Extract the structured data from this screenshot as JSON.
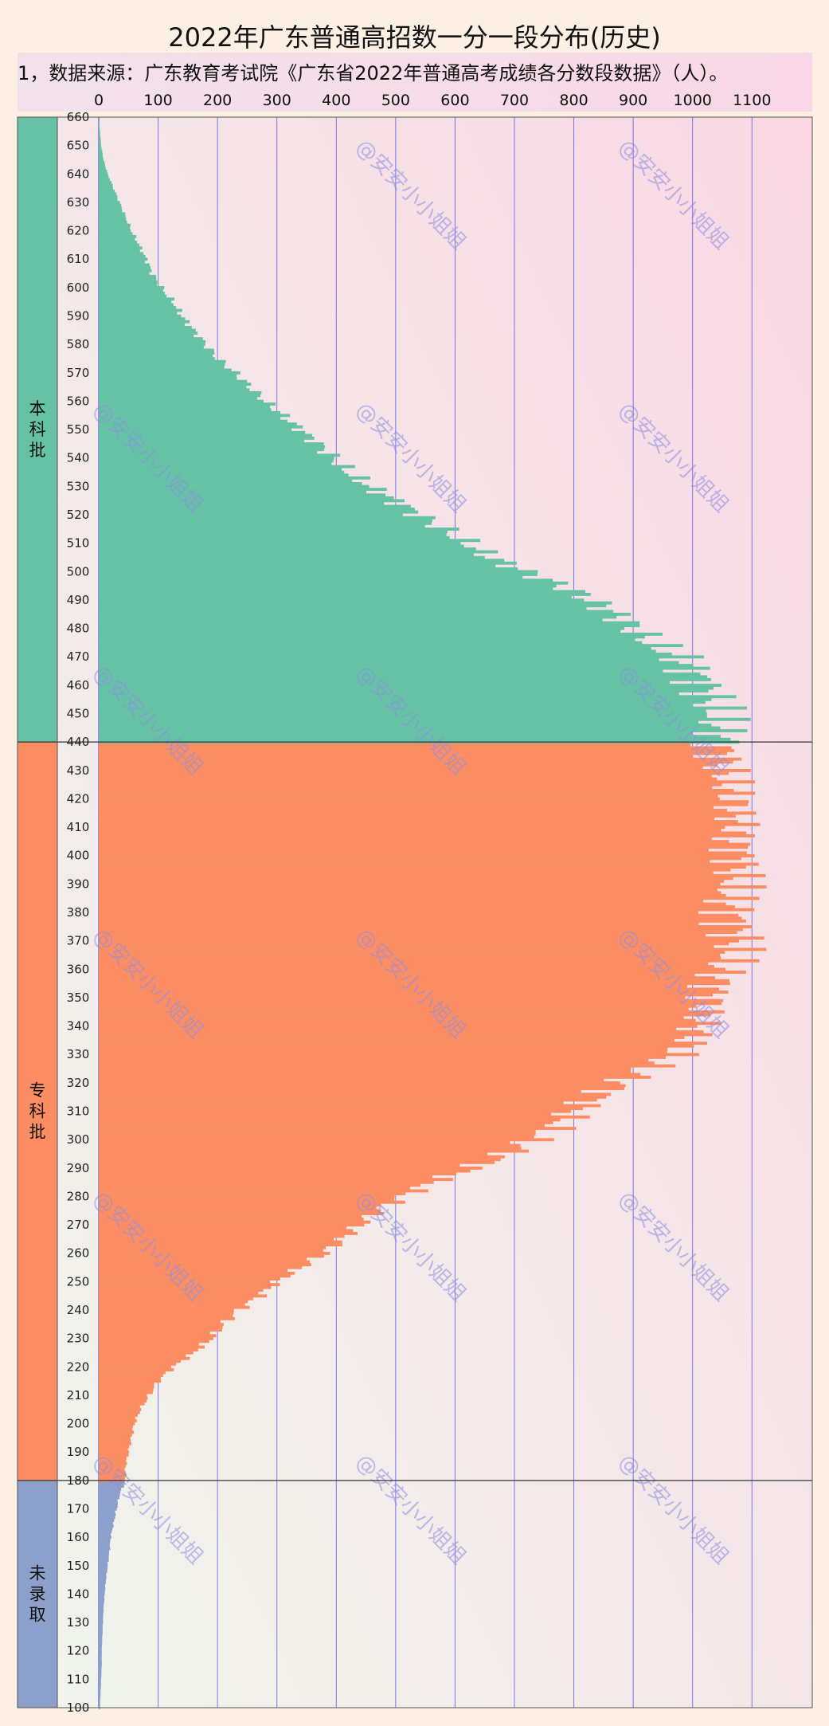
{
  "title": "2022年广东普通高招数一分一段分布(历史)",
  "source_note": "1，数据来源：广东教育考试院《广东省2022年普通高考成绩各分数段数据》（人）。",
  "watermark": "@安安小小姐姐",
  "colors": {
    "benke": "#66c2a5",
    "zhuanke": "#fc8d62",
    "weiluqu": "#8da0cb",
    "gridline": "#4848e8",
    "plot_bg_left": "#f0f4ec",
    "plot_bg_right": "#f9d8e4"
  },
  "chart_data": {
    "type": "bar",
    "orientation": "horizontal",
    "title": "2022年广东普通高招数一分一段分布(历史)",
    "x_ticks": [
      0,
      100,
      200,
      300,
      400,
      500,
      600,
      700,
      800,
      900,
      1000,
      1100
    ],
    "xlim": [
      0,
      1230
    ],
    "y_ticks": [
      660,
      650,
      640,
      630,
      620,
      610,
      600,
      590,
      580,
      570,
      560,
      550,
      540,
      530,
      520,
      510,
      500,
      490,
      480,
      470,
      460,
      450,
      440,
      430,
      420,
      410,
      400,
      390,
      380,
      370,
      360,
      350,
      340,
      330,
      320,
      310,
      300,
      290,
      280,
      270,
      260,
      250,
      240,
      230,
      220,
      210,
      200,
      190,
      180,
      170,
      160,
      150,
      140,
      130,
      120,
      110,
      100
    ],
    "ylim": [
      100,
      660
    ],
    "grid": "vertical",
    "bands": [
      {
        "label": "本科批",
        "from": 440,
        "to": 660,
        "color": "#66c2a5"
      },
      {
        "label": "专科批",
        "from": 180,
        "to": 439,
        "color": "#fc8d62"
      },
      {
        "label": "未录取",
        "from": 100,
        "to": 179,
        "color": "#8da0cb"
      }
    ],
    "anchors": [
      [
        660,
        0
      ],
      [
        655,
        2
      ],
      [
        650,
        4
      ],
      [
        645,
        8
      ],
      [
        640,
        15
      ],
      [
        635,
        25
      ],
      [
        630,
        35
      ],
      [
        625,
        45
      ],
      [
        620,
        55
      ],
      [
        615,
        68
      ],
      [
        610,
        80
      ],
      [
        605,
        90
      ],
      [
        600,
        105
      ],
      [
        595,
        125
      ],
      [
        590,
        140
      ],
      [
        585,
        160
      ],
      [
        580,
        180
      ],
      [
        575,
        200
      ],
      [
        570,
        230
      ],
      [
        565,
        255
      ],
      [
        560,
        280
      ],
      [
        555,
        310
      ],
      [
        550,
        340
      ],
      [
        545,
        370
      ],
      [
        540,
        395
      ],
      [
        535,
        420
      ],
      [
        530,
        455
      ],
      [
        525,
        500
      ],
      [
        520,
        540
      ],
      [
        515,
        580
      ],
      [
        510,
        620
      ],
      [
        505,
        660
      ],
      [
        500,
        720
      ],
      [
        495,
        780
      ],
      [
        490,
        830
      ],
      [
        485,
        870
      ],
      [
        480,
        900
      ],
      [
        475,
        930
      ],
      [
        470,
        975
      ],
      [
        465,
        1000
      ],
      [
        460,
        1020
      ],
      [
        455,
        1030
      ],
      [
        450,
        1040
      ],
      [
        445,
        1045
      ],
      [
        440,
        1050
      ],
      [
        435,
        1050
      ],
      [
        430,
        1055
      ],
      [
        425,
        1060
      ],
      [
        420,
        1070
      ],
      [
        415,
        1070
      ],
      [
        410,
        1075
      ],
      [
        405,
        1070
      ],
      [
        400,
        1080
      ],
      [
        395,
        1075
      ],
      [
        390,
        1070
      ],
      [
        385,
        1060
      ],
      [
        380,
        1065
      ],
      [
        375,
        1070
      ],
      [
        370,
        1075
      ],
      [
        365,
        1065
      ],
      [
        360,
        1050
      ],
      [
        355,
        1040
      ],
      [
        350,
        1030
      ],
      [
        345,
        1020
      ],
      [
        340,
        1010
      ],
      [
        335,
        1000
      ],
      [
        330,
        970
      ],
      [
        325,
        920
      ],
      [
        320,
        880
      ],
      [
        315,
        840
      ],
      [
        310,
        800
      ],
      [
        305,
        770
      ],
      [
        300,
        730
      ],
      [
        295,
        690
      ],
      [
        290,
        630
      ],
      [
        285,
        560
      ],
      [
        280,
        510
      ],
      [
        275,
        470
      ],
      [
        270,
        440
      ],
      [
        265,
        410
      ],
      [
        260,
        380
      ],
      [
        255,
        340
      ],
      [
        250,
        300
      ],
      [
        245,
        270
      ],
      [
        240,
        235
      ],
      [
        235,
        210
      ],
      [
        230,
        190
      ],
      [
        225,
        160
      ],
      [
        220,
        125
      ],
      [
        215,
        100
      ],
      [
        210,
        85
      ],
      [
        205,
        70
      ],
      [
        200,
        60
      ],
      [
        195,
        55
      ],
      [
        190,
        50
      ],
      [
        185,
        45
      ],
      [
        180,
        45
      ],
      [
        175,
        35
      ],
      [
        170,
        30
      ],
      [
        165,
        25
      ],
      [
        160,
        20
      ],
      [
        155,
        18
      ],
      [
        150,
        15
      ],
      [
        145,
        12
      ],
      [
        140,
        10
      ],
      [
        135,
        8
      ],
      [
        130,
        7
      ],
      [
        125,
        6
      ],
      [
        120,
        5
      ],
      [
        115,
        5
      ],
      [
        110,
        4
      ],
      [
        105,
        3
      ],
      [
        100,
        2
      ]
    ]
  }
}
